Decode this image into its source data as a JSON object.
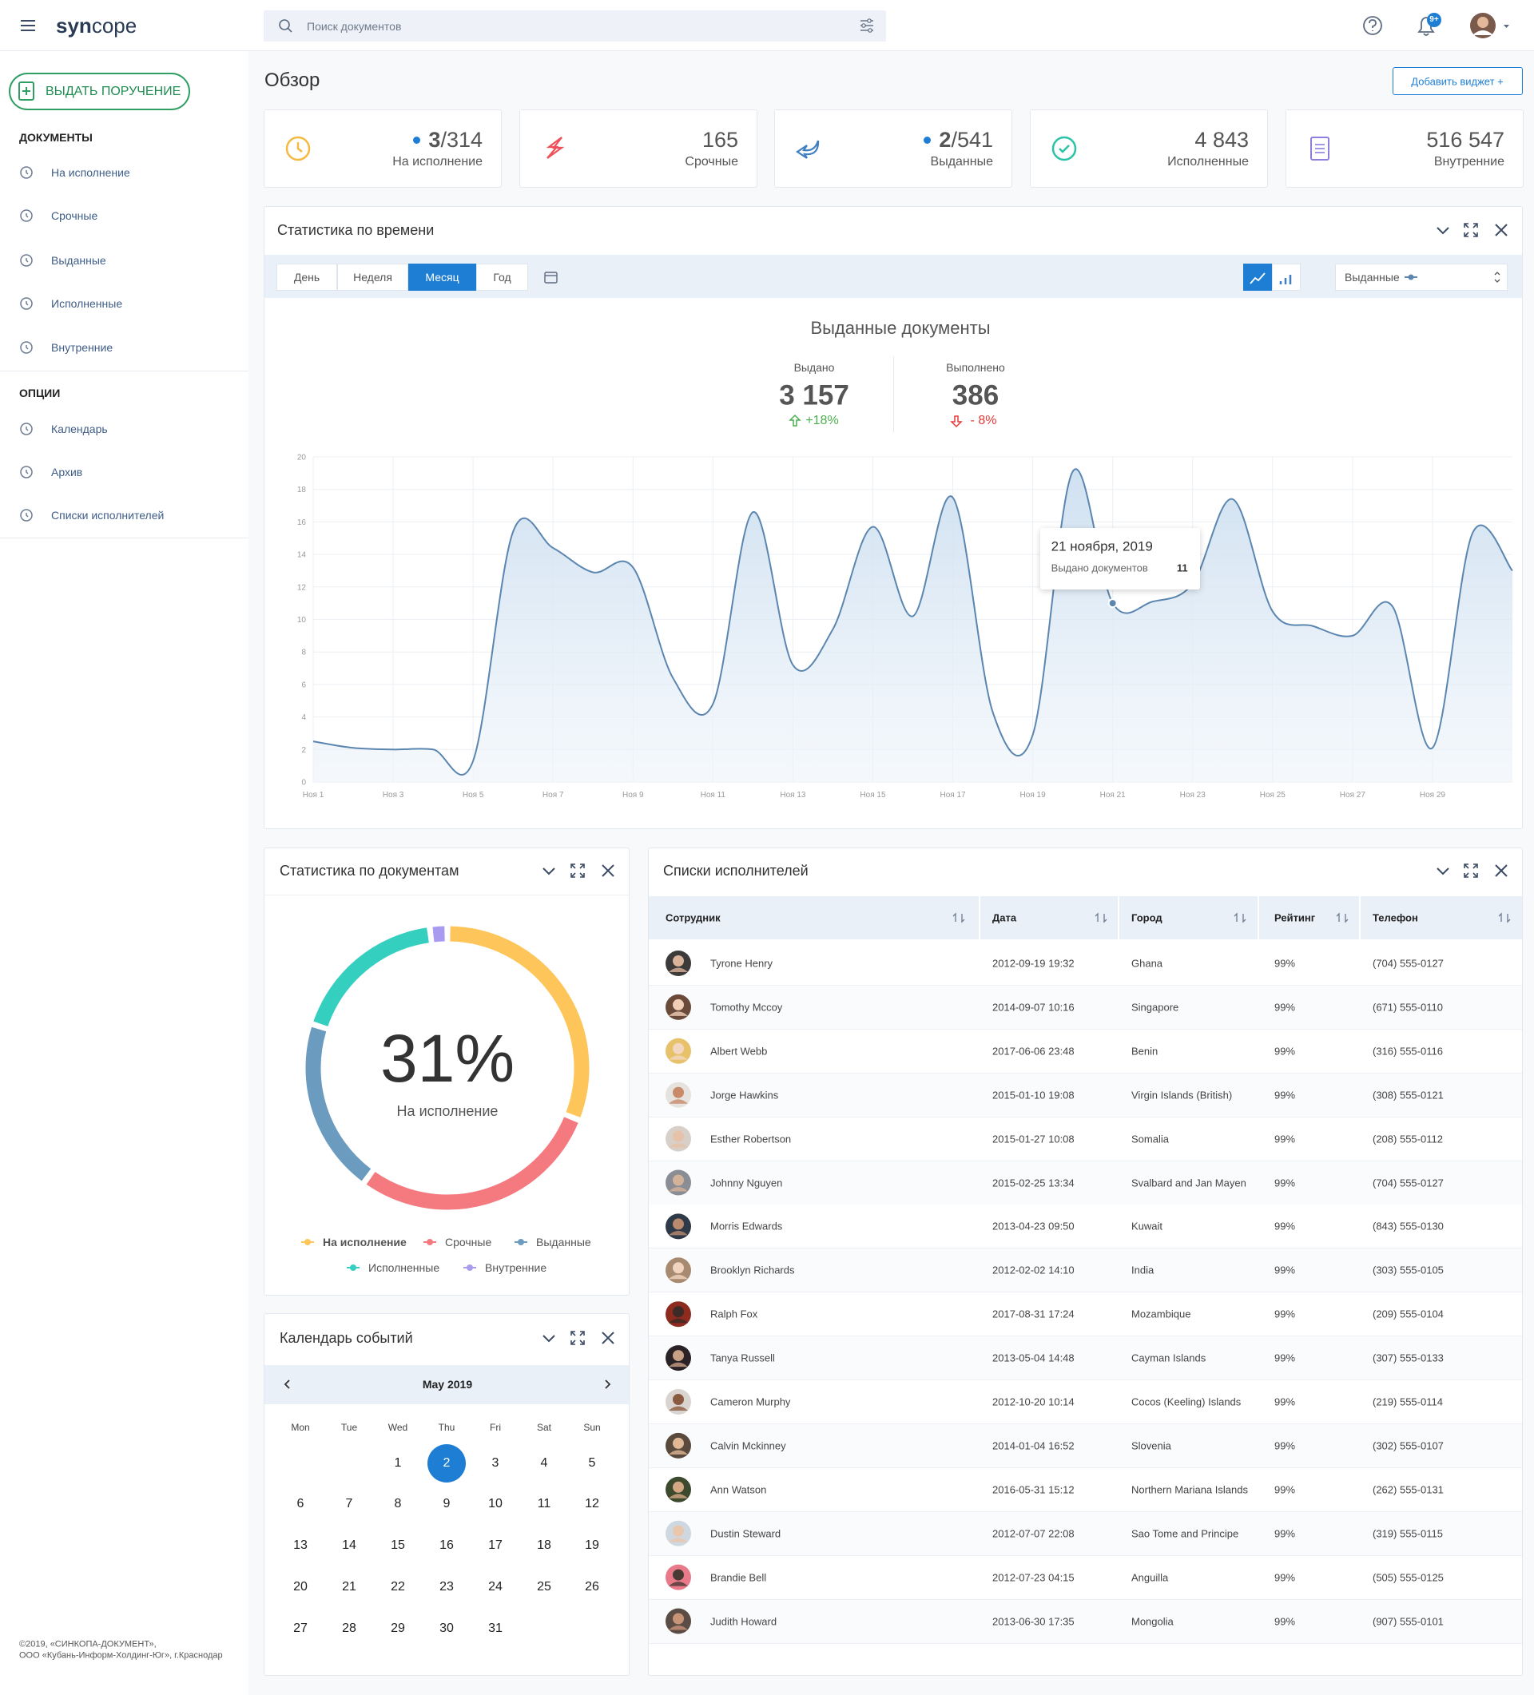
{
  "header": {
    "logo_bold": "syn",
    "logo_rest": "cope",
    "search_placeholder": "Поиск документов",
    "notifications": "9+"
  },
  "sidebar": {
    "action": "ВЫДАТЬ ПОРУЧЕНИЕ",
    "sections": [
      {
        "title": "ДОКУМЕНТЫ",
        "items": [
          "На исполнение",
          "Срочные",
          "Выданные",
          "Исполненные",
          "Внутренние"
        ]
      },
      {
        "title": "ОПЦИИ",
        "items": [
          "Календарь",
          "Архив",
          "Списки исполнителей"
        ]
      }
    ],
    "footer": [
      "©2019, «СИНКОПА-ДОКУМЕНТ»,",
      "ООО «Кубань-Информ-Холдинг-Юг», г.Краснодар"
    ]
  },
  "page": {
    "title": "Обзор",
    "add_widget": "Добавить виджет +"
  },
  "stats": [
    {
      "highlight": "3",
      "rest": "/314",
      "label": "На исполнение"
    },
    {
      "value": "165",
      "label": "Срочные"
    },
    {
      "highlight": "2",
      "rest": "/541",
      "label": "Выданные"
    },
    {
      "value": "4 843",
      "label": "Исполненные"
    },
    {
      "value": "516 547",
      "label": "Внутренние"
    }
  ],
  "time_panel": {
    "title": "Статистика по времени",
    "tabs": [
      "День",
      "Неделя",
      "Месяц",
      "Год"
    ],
    "active_tab": 2
  },
  "chart_data": [
    {
      "type": "line",
      "title": "Выданные документы",
      "kpis": [
        {
          "label": "Выдано",
          "value": "3 157",
          "change": "+18%",
          "trend": "up"
        },
        {
          "label": "Выполнено",
          "value": "386",
          "change": "- 8%",
          "trend": "down"
        }
      ],
      "categories": [
        "Ноя 1",
        null,
        "Ноя 3",
        null,
        "Ноя 5",
        null,
        "Ноя 7",
        null,
        "Ноя 9",
        null,
        "Ноя 11",
        null,
        "Ноя 13",
        null,
        "Ноя 15",
        null,
        "Ноя 17",
        null,
        "Ноя 19",
        null,
        "Ноя 21",
        null,
        "Ноя 23",
        null,
        "Ноя 25",
        null,
        "Ноя 27",
        null,
        "Ноя 29",
        null,
        null
      ],
      "series": [
        {
          "name": "Выданные",
          "color": "#5b86b0",
          "values": [
            2.5,
            2.1,
            2.0,
            2.0,
            1.3,
            15.4,
            14.4,
            12.9,
            13.2,
            6.4,
            4.8,
            16.6,
            7.2,
            9.4,
            15.7,
            10.2,
            17.5,
            4.3,
            2.9,
            19.1,
            11,
            11.1,
            12.2,
            17.4,
            10.5,
            9.6,
            9.0,
            10.8,
            2.1,
            15.3,
            13.0
          ]
        }
      ],
      "ylim": [
        0,
        20
      ],
      "yticks": [
        0,
        2,
        4,
        6,
        8,
        10,
        12,
        14,
        16,
        18,
        20
      ],
      "grid": true,
      "tooltip": {
        "title": "21 ноября, 2019",
        "label": "Выдано документов"
      }
    },
    {
      "type": "donut",
      "title": "Статистика по документам",
      "categories": [
        "На исполнение",
        "Срочные",
        "Выданные",
        "Исполненные",
        "Внутренние"
      ],
      "values": [
        31,
        29,
        20,
        18,
        2
      ],
      "colors": [
        "#fdc55a",
        "#f57a80",
        "#6c9bc0",
        "#35cfc0",
        "#a99cf0"
      ],
      "center_label": "31%"
    }
  ],
  "calendar": {
    "title": "Календарь событий",
    "month": "May 2019",
    "weekdays": [
      "Mon",
      "Tue",
      "Wed",
      "Thu",
      "Fri",
      "Sat",
      "Sun"
    ],
    "weeks": [
      [
        null,
        null,
        1,
        2,
        3,
        4,
        5
      ],
      [
        6,
        7,
        8,
        9,
        10,
        11,
        12
      ],
      [
        13,
        14,
        15,
        16,
        17,
        18,
        19
      ],
      [
        20,
        21,
        22,
        23,
        24,
        25,
        26
      ],
      [
        27,
        28,
        29,
        30,
        31,
        null,
        null
      ]
    ],
    "selected": 2
  },
  "table": {
    "title": "Списки исполнителей",
    "columns": [
      "Сотрудник",
      "Дата",
      "Город",
      "Рейтинг",
      "Телефон"
    ],
    "rows": [
      [
        "Tyrone Henry",
        "2012-09-19 19:32",
        "Ghana",
        "99%",
        "(704) 555-0127"
      ],
      [
        "Tomothy Mccoy",
        "2014-09-07 10:16",
        "Singapore",
        "99%",
        "(671) 555-0110"
      ],
      [
        "Albert Webb",
        "2017-06-06 23:48",
        "Benin",
        "99%",
        "(316) 555-0116"
      ],
      [
        "Jorge Hawkins",
        "2015-01-10 19:08",
        "Virgin Islands (British)",
        "99%",
        "(308) 555-0121"
      ],
      [
        "Esther Robertson",
        "2015-01-27 10:08",
        "Somalia",
        "99%",
        "(208) 555-0112"
      ],
      [
        "Johnny Nguyen",
        "2015-02-25 13:34",
        "Svalbard and Jan Mayen",
        "99%",
        "(704) 555-0127"
      ],
      [
        "Morris Edwards",
        "2013-04-23 09:50",
        "Kuwait",
        "99%",
        "(843) 555-0130"
      ],
      [
        "Brooklyn Richards",
        "2012-02-02 14:10",
        "India",
        "99%",
        "(303) 555-0105"
      ],
      [
        "Ralph Fox",
        "2017-08-31 17:24",
        "Mozambique",
        "99%",
        "(209) 555-0104"
      ],
      [
        "Tanya Russell",
        "2013-05-04 14:48",
        "Cayman Islands",
        "99%",
        "(307) 555-0133"
      ],
      [
        "Cameron Murphy",
        "2012-10-20 10:14",
        "Cocos (Keeling) Islands",
        "99%",
        "(219) 555-0114"
      ],
      [
        "Calvin Mckinney",
        "2014-01-04 16:52",
        "Slovenia",
        "99%",
        "(302) 555-0107"
      ],
      [
        "Ann Watson",
        "2016-05-31 15:12",
        "Northern Mariana Islands",
        "99%",
        "(262) 555-0131"
      ],
      [
        "Dustin Steward",
        "2012-07-07 22:08",
        "Sao Tome and Principe",
        "99%",
        "(319) 555-0115"
      ],
      [
        "Brandie Bell",
        "2012-07-23 04:15",
        "Anguilla",
        "99%",
        "(505) 555-0125"
      ],
      [
        "Judith Howard",
        "2013-06-30 17:35",
        "Mongolia",
        "99%",
        "(907) 555-0101"
      ]
    ]
  }
}
